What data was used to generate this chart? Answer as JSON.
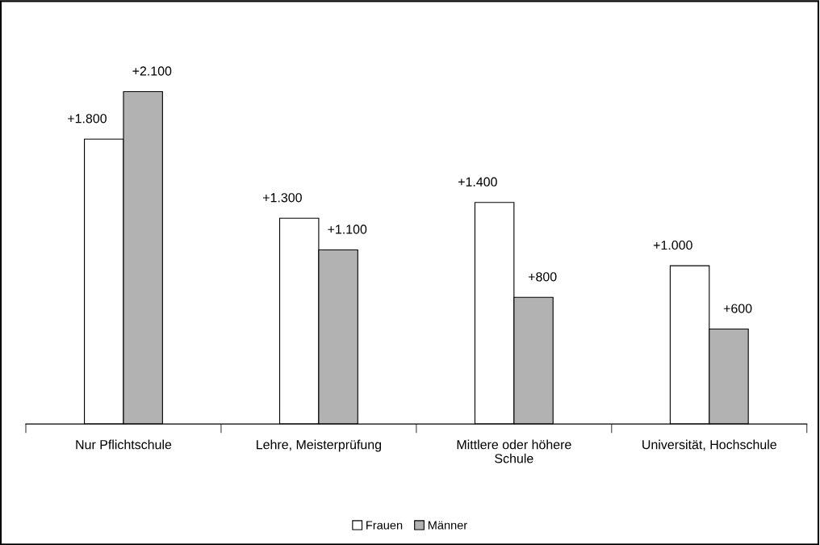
{
  "chart_data": {
    "type": "bar",
    "categories": [
      "Nur Pflichtschule",
      "Lehre, Meisterprüfung",
      "Mittlere oder höhere\nSchule",
      "Universität, Hochschule"
    ],
    "series": [
      {
        "name": "Frauen",
        "color": "#ffffff",
        "values": [
          1800,
          1300,
          1400,
          1000
        ],
        "value_labels": [
          "+1.800",
          "+1.300",
          "+1.400",
          "+1.000"
        ]
      },
      {
        "name": "Männer",
        "color": "#b2b2b2",
        "values": [
          2100,
          1100,
          800,
          600
        ],
        "value_labels": [
          "+2.100",
          "+1.100",
          "+800",
          "+600"
        ]
      }
    ],
    "grid": false,
    "legend": "bottom"
  }
}
